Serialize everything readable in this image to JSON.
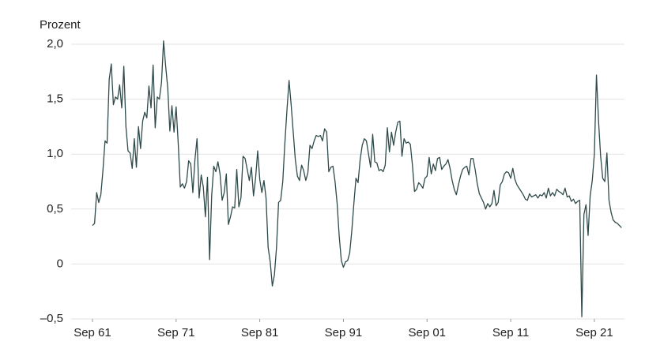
{
  "chart_data": {
    "type": "line",
    "y_label": "Prozent",
    "color": "#2f4a4a",
    "grid": true,
    "xlim": [
      1959.2,
      2025.35
    ],
    "ylim": [
      -0.5,
      2.0
    ],
    "yticks": [
      {
        "value": -0.5,
        "label": "–0,5"
      },
      0,
      {
        "value": 0.5,
        "label": "0,5"
      },
      {
        "value": 1.0,
        "label": "1,0"
      },
      {
        "value": 1.5,
        "label": "1,5"
      },
      {
        "value": 2.0,
        "label": "2,0"
      }
    ],
    "xticks": [
      {
        "value": 1961.75,
        "label": "Sep 61"
      },
      {
        "value": 1971.75,
        "label": "Sep 71"
      },
      {
        "value": 1981.75,
        "label": "Sep 81"
      },
      {
        "value": 1991.75,
        "label": "Sep 91"
      },
      {
        "value": 2001.75,
        "label": "Sep 01"
      },
      {
        "value": 2011.75,
        "label": "Sep 11"
      },
      {
        "value": 2021.75,
        "label": "Sep 21"
      }
    ],
    "x": [
      1961.75,
      1962,
      1962.25,
      1962.5,
      1962.75,
      1963,
      1963.25,
      1963.5,
      1963.75,
      1964,
      1964.25,
      1964.5,
      1964.75,
      1965,
      1965.25,
      1965.5,
      1965.75,
      1966,
      1966.25,
      1966.5,
      1966.75,
      1967,
      1967.25,
      1967.5,
      1967.75,
      1968,
      1968.25,
      1968.5,
      1968.75,
      1969,
      1969.25,
      1969.5,
      1969.75,
      1970,
      1970.25,
      1970.5,
      1970.75,
      1971,
      1971.25,
      1971.5,
      1971.75,
      1972,
      1972.25,
      1972.5,
      1972.75,
      1973,
      1973.25,
      1973.5,
      1973.75,
      1974,
      1974.25,
      1974.5,
      1974.75,
      1975,
      1975.25,
      1975.5,
      1975.75,
      1976,
      1976.25,
      1976.5,
      1976.75,
      1977,
      1977.25,
      1977.5,
      1977.75,
      1978,
      1978.25,
      1978.5,
      1978.75,
      1979,
      1979.25,
      1979.5,
      1979.75,
      1980,
      1980.25,
      1980.5,
      1980.75,
      1981,
      1981.25,
      1981.5,
      1981.75,
      1982,
      1982.25,
      1982.5,
      1982.75,
      1983,
      1983.25,
      1983.5,
      1983.75,
      1984,
      1984.25,
      1984.5,
      1984.75,
      1985,
      1985.25,
      1985.5,
      1985.75,
      1986,
      1986.25,
      1986.5,
      1986.75,
      1987,
      1987.25,
      1987.5,
      1987.75,
      1988,
      1988.25,
      1988.5,
      1988.75,
      1989,
      1989.25,
      1989.5,
      1989.75,
      1990,
      1990.25,
      1990.5,
      1990.75,
      1991,
      1991.25,
      1991.5,
      1991.75,
      1992,
      1992.25,
      1992.5,
      1992.75,
      1993,
      1993.25,
      1993.5,
      1993.75,
      1994,
      1994.25,
      1994.5,
      1994.75,
      1995,
      1995.25,
      1995.5,
      1995.75,
      1996,
      1996.25,
      1996.5,
      1996.75,
      1997,
      1997.25,
      1997.5,
      1997.75,
      1998,
      1998.25,
      1998.5,
      1998.75,
      1999,
      1999.25,
      1999.5,
      1999.75,
      2000,
      2000.25,
      2000.5,
      2000.75,
      2001,
      2001.25,
      2001.5,
      2001.75,
      2002,
      2002.25,
      2002.5,
      2002.75,
      2003,
      2003.25,
      2003.5,
      2003.75,
      2004,
      2004.25,
      2004.5,
      2004.75,
      2005,
      2005.25,
      2005.5,
      2005.75,
      2006,
      2006.25,
      2006.5,
      2006.75,
      2007,
      2007.25,
      2007.5,
      2007.75,
      2008,
      2008.25,
      2008.5,
      2008.75,
      2009,
      2009.25,
      2009.5,
      2009.75,
      2010,
      2010.25,
      2010.5,
      2010.75,
      2011,
      2011.25,
      2011.5,
      2011.75,
      2012,
      2012.25,
      2012.5,
      2012.75,
      2013,
      2013.25,
      2013.5,
      2013.75,
      2014,
      2014.25,
      2014.5,
      2014.75,
      2015,
      2015.25,
      2015.5,
      2015.75,
      2016,
      2016.25,
      2016.5,
      2016.75,
      2017,
      2017.25,
      2017.5,
      2017.75,
      2018,
      2018.25,
      2018.5,
      2018.75,
      2019,
      2019.25,
      2019.5,
      2019.75,
      2020,
      2020.25,
      2020.5,
      2020.75,
      2021,
      2021.25,
      2021.5,
      2021.75,
      2022,
      2022.25,
      2022.5,
      2022.75,
      2023,
      2023.25,
      2023.5,
      2023.75,
      2024,
      2024.25,
      2024.5,
      2024.75,
      2025
    ],
    "values": [
      0.35,
      0.37,
      0.65,
      0.56,
      0.63,
      0.85,
      1.12,
      1.1,
      1.68,
      1.82,
      1.45,
      1.52,
      1.5,
      1.63,
      1.42,
      1.8,
      1.25,
      1.03,
      1.01,
      0.87,
      1.14,
      0.88,
      1.25,
      1.05,
      1.3,
      1.38,
      1.33,
      1.62,
      1.42,
      1.81,
      1.24,
      1.52,
      1.5,
      1.65,
      2.03,
      1.8,
      1.6,
      1.21,
      1.44,
      1.2,
      1.43,
      1.1,
      0.7,
      0.73,
      0.69,
      0.75,
      0.94,
      0.91,
      0.65,
      0.95,
      1.14,
      0.6,
      0.81,
      0.7,
      0.43,
      0.79,
      0.04,
      0.62,
      0.89,
      0.84,
      0.93,
      0.82,
      0.58,
      0.65,
      0.82,
      0.36,
      0.43,
      0.52,
      0.51,
      0.86,
      0.52,
      0.6,
      0.98,
      0.96,
      0.86,
      0.76,
      0.88,
      0.62,
      0.78,
      1.03,
      0.77,
      0.65,
      0.76,
      0.6,
      0.15,
      0.02,
      -0.2,
      -0.1,
      0.15,
      0.56,
      0.58,
      0.75,
      1.1,
      1.4,
      1.67,
      1.45,
      1.2,
      0.95,
      0.8,
      0.76,
      0.9,
      0.85,
      0.76,
      0.83,
      1.08,
      1.05,
      1.12,
      1.17,
      1.16,
      1.17,
      1.12,
      1.23,
      1.2,
      0.84,
      0.88,
      0.89,
      0.75,
      0.55,
      0.25,
      0.03,
      -0.03,
      0.02,
      0.03,
      0.1,
      0.3,
      0.55,
      0.78,
      0.74,
      0.95,
      1.08,
      1.14,
      1.12,
      1.0,
      0.88,
      1.18,
      0.93,
      0.92,
      0.85,
      0.86,
      0.84,
      0.9,
      1.24,
      1.02,
      1.2,
      1.08,
      1.2,
      1.29,
      1.3,
      0.98,
      1.14,
      1.1,
      1.11,
      1.09,
      0.9,
      0.66,
      0.68,
      0.74,
      0.72,
      0.69,
      0.78,
      0.8,
      0.97,
      0.82,
      0.91,
      0.85,
      0.96,
      0.97,
      0.86,
      0.89,
      0.91,
      0.95,
      0.87,
      0.76,
      0.68,
      0.63,
      0.72,
      0.8,
      0.86,
      0.88,
      0.89,
      0.81,
      0.96,
      0.96,
      0.86,
      0.73,
      0.64,
      0.6,
      0.56,
      0.5,
      0.55,
      0.52,
      0.55,
      0.67,
      0.53,
      0.56,
      0.72,
      0.75,
      0.82,
      0.84,
      0.83,
      0.78,
      0.87,
      0.77,
      0.72,
      0.69,
      0.66,
      0.63,
      0.59,
      0.58,
      0.64,
      0.61,
      0.62,
      0.63,
      0.6,
      0.63,
      0.62,
      0.65,
      0.6,
      0.69,
      0.62,
      0.65,
      0.62,
      0.68,
      0.66,
      0.65,
      0.63,
      0.69,
      0.61,
      0.62,
      0.57,
      0.59,
      0.55,
      0.57,
      0.58,
      -0.48,
      0.45,
      0.54,
      0.26,
      0.62,
      0.76,
      1.0,
      1.72,
      1.3,
      0.98,
      0.78,
      0.75,
      1.01,
      0.58,
      0.47,
      0.4,
      0.38,
      0.37,
      0.35,
      0.33
    ]
  }
}
